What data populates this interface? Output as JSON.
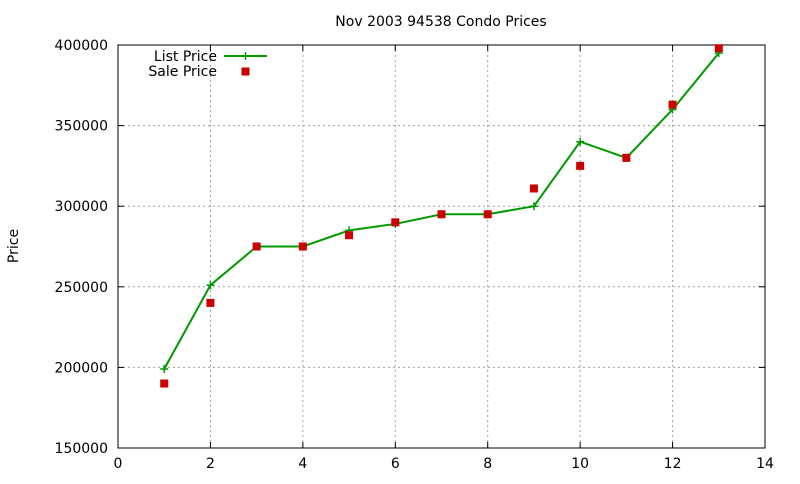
{
  "chart_data": {
    "type": "line",
    "title": "Nov 2003 94538 Condo Prices",
    "xlabel": "",
    "ylabel": "Price",
    "xlim": [
      0,
      14
    ],
    "ylim": [
      150000,
      400000
    ],
    "xticks": [
      0,
      2,
      4,
      6,
      8,
      10,
      12,
      14
    ],
    "yticks": [
      150000,
      200000,
      250000,
      300000,
      350000,
      400000
    ],
    "grid": true,
    "legend_position": "top-left",
    "series": [
      {
        "name": "List Price",
        "style": "line-with-plus-markers",
        "color": "#009900",
        "x": [
          1,
          2,
          3,
          4,
          5,
          6,
          7,
          8,
          9,
          10,
          11,
          12,
          13
        ],
        "y": [
          199000,
          251000,
          275000,
          275000,
          285000,
          289000,
          295000,
          295000,
          300000,
          340000,
          330000,
          360000,
          395000
        ]
      },
      {
        "name": "Sale Price",
        "style": "square-markers",
        "color": "#cc0000",
        "x": [
          1,
          2,
          3,
          4,
          5,
          6,
          7,
          8,
          9,
          10,
          11,
          12,
          13
        ],
        "y": [
          190000,
          240000,
          275000,
          275000,
          282000,
          290000,
          295000,
          295000,
          311000,
          325000,
          330000,
          363000,
          398000
        ]
      }
    ]
  }
}
